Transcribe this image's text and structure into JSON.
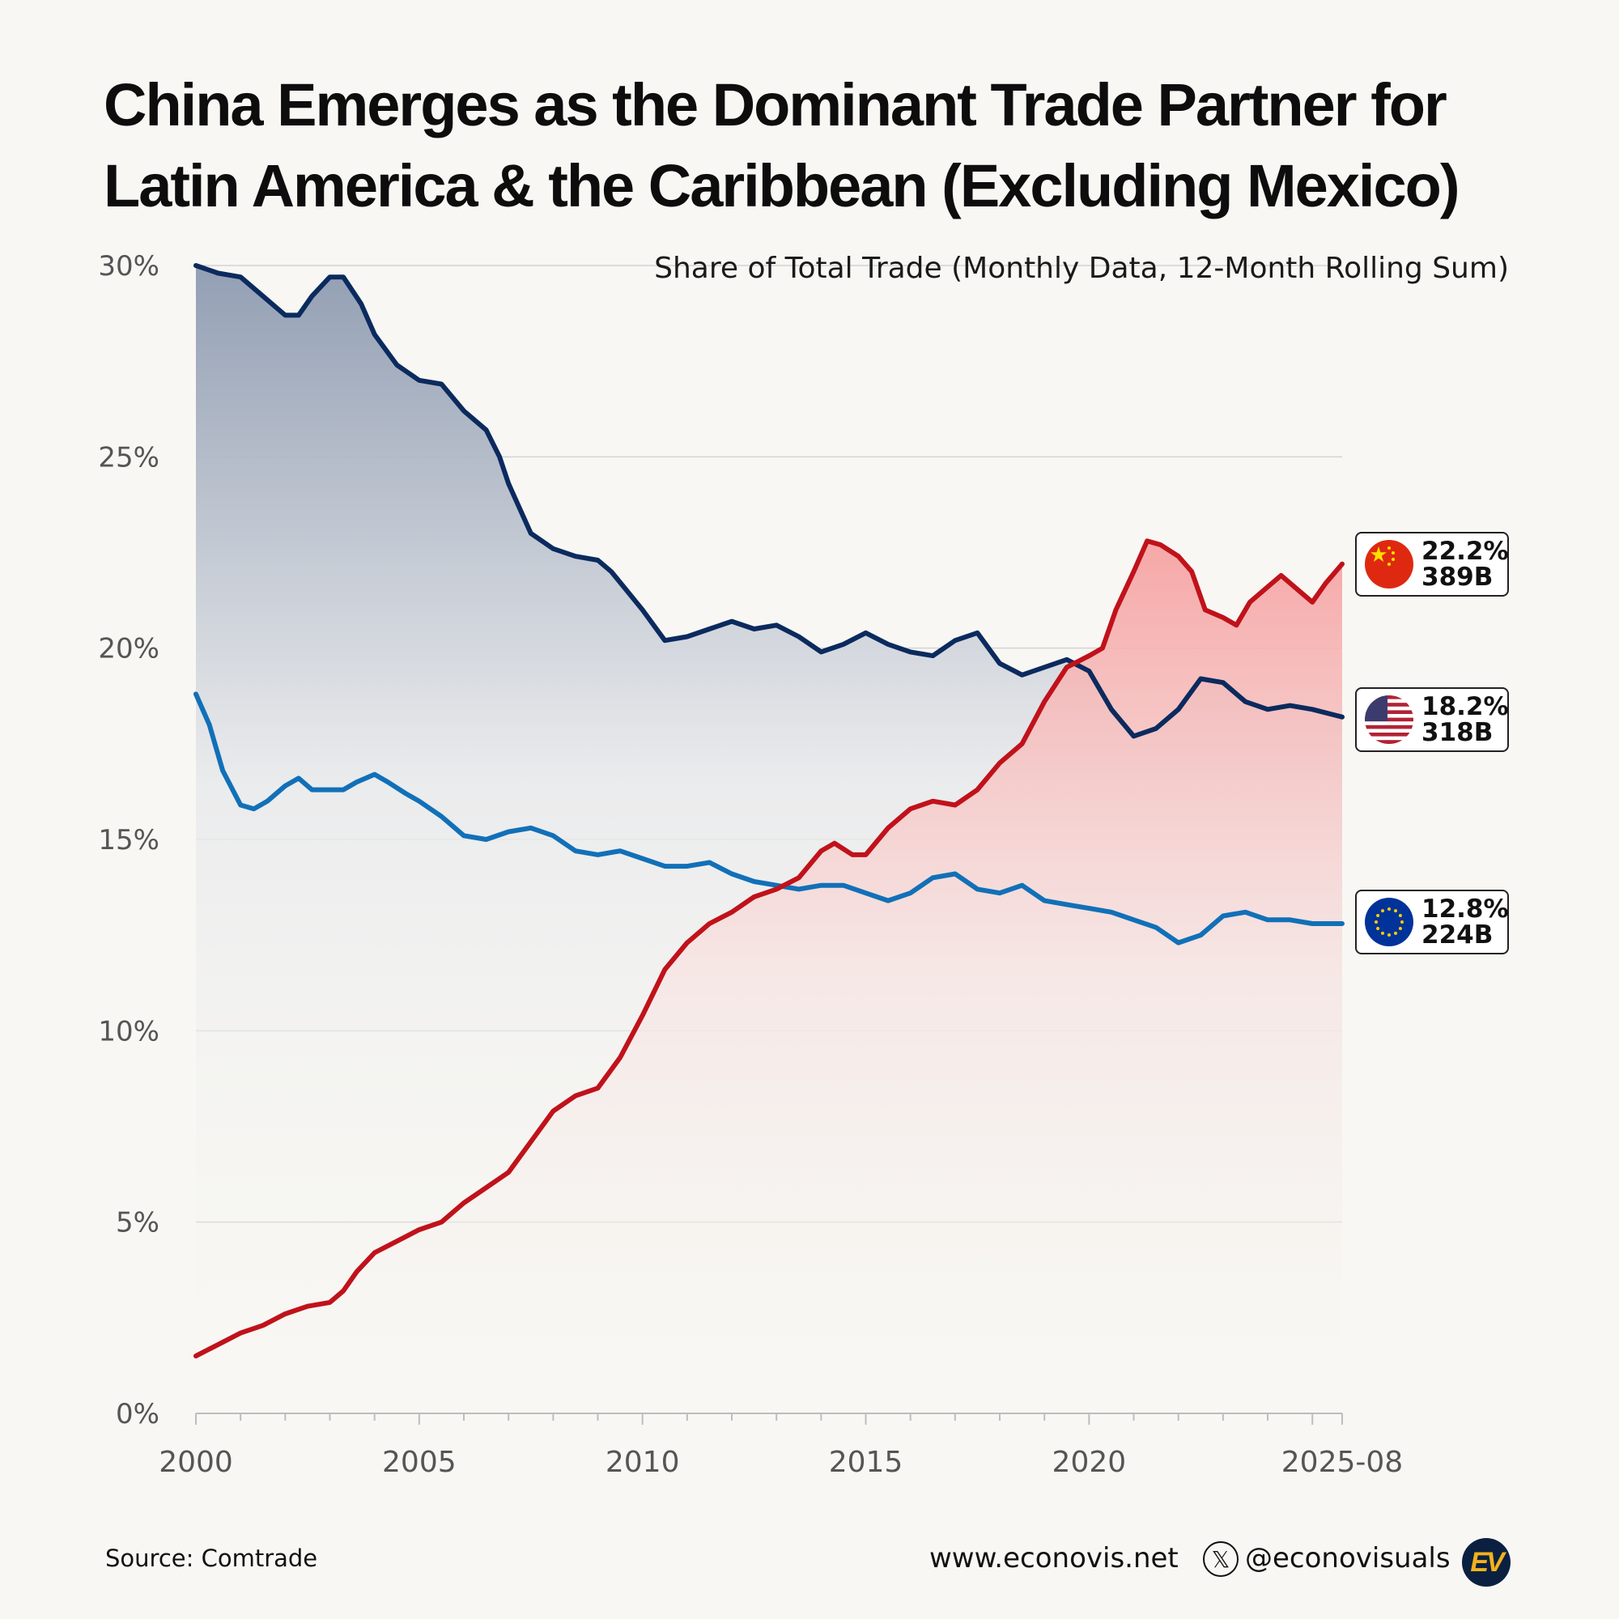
{
  "title": {
    "line1": "China Emerges as the Dominant Trade Partner for",
    "line2": "Latin America & the Caribbean (Excluding Mexico)"
  },
  "subtitle": "Share of Total Trade (Monthly Data, 12-Month Rolling Sum)",
  "footer": {
    "source": "Source: Comtrade",
    "website": "www.econovis.net",
    "handle": "@econovisuals",
    "x_icon": "𝕏",
    "logo_text": "EV"
  },
  "badges": {
    "china": {
      "share": "22.2%",
      "value": "389B"
    },
    "usa": {
      "share": "18.2%",
      "value": "318B"
    },
    "eu": {
      "share": "12.8%",
      "value": "224B"
    }
  },
  "chart_data": {
    "type": "line",
    "title": "China Emerges as the Dominant Trade Partner for Latin America & the Caribbean (Excluding Mexico)",
    "subtitle": "Share of Total Trade (Monthly Data, 12-Month Rolling Sum)",
    "xlabel": "",
    "ylabel": "",
    "xlim": [
      2000,
      2025.667
    ],
    "ylim": [
      0,
      30
    ],
    "y_ticks": [
      0,
      5,
      10,
      15,
      20,
      25,
      30
    ],
    "y_tick_labels": [
      "0%",
      "5%",
      "10%",
      "15%",
      "20%",
      "25%",
      "30%"
    ],
    "x_ticks": [
      2000,
      2005,
      2010,
      2015,
      2020,
      2025.667
    ],
    "x_tick_labels": [
      "2000",
      "2005",
      "2010",
      "2015",
      "2020",
      "2025-08"
    ],
    "grid": true,
    "series": [
      {
        "name": "United States",
        "color": "#0b2a5e",
        "fill": "#8d9ab0",
        "points": [
          [
            2000.0,
            30.0
          ],
          [
            2000.5,
            29.8
          ],
          [
            2001.0,
            29.7
          ],
          [
            2001.5,
            29.2
          ],
          [
            2002.0,
            28.7
          ],
          [
            2002.3,
            28.7
          ],
          [
            2002.6,
            29.2
          ],
          [
            2003.0,
            29.7
          ],
          [
            2003.3,
            29.7
          ],
          [
            2003.7,
            29.0
          ],
          [
            2004.0,
            28.2
          ],
          [
            2004.5,
            27.4
          ],
          [
            2005.0,
            27.0
          ],
          [
            2005.5,
            26.9
          ],
          [
            2006.0,
            26.2
          ],
          [
            2006.5,
            25.7
          ],
          [
            2006.8,
            25.0
          ],
          [
            2007.0,
            24.3
          ],
          [
            2007.5,
            23.0
          ],
          [
            2008.0,
            22.6
          ],
          [
            2008.5,
            22.4
          ],
          [
            2009.0,
            22.3
          ],
          [
            2009.3,
            22.0
          ],
          [
            2010.0,
            21.0
          ],
          [
            2010.5,
            20.2
          ],
          [
            2011.0,
            20.3
          ],
          [
            2011.5,
            20.5
          ],
          [
            2012.0,
            20.7
          ],
          [
            2012.5,
            20.5
          ],
          [
            2013.0,
            20.6
          ],
          [
            2013.5,
            20.3
          ],
          [
            2014.0,
            19.9
          ],
          [
            2014.5,
            20.1
          ],
          [
            2015.0,
            20.4
          ],
          [
            2015.5,
            20.1
          ],
          [
            2016.0,
            19.9
          ],
          [
            2016.5,
            19.8
          ],
          [
            2017.0,
            20.2
          ],
          [
            2017.5,
            20.4
          ],
          [
            2018.0,
            19.6
          ],
          [
            2018.5,
            19.3
          ],
          [
            2019.0,
            19.5
          ],
          [
            2019.5,
            19.7
          ],
          [
            2020.0,
            19.4
          ],
          [
            2020.5,
            18.4
          ],
          [
            2021.0,
            17.7
          ],
          [
            2021.5,
            17.9
          ],
          [
            2022.0,
            18.4
          ],
          [
            2022.5,
            19.2
          ],
          [
            2023.0,
            19.1
          ],
          [
            2023.5,
            18.6
          ],
          [
            2024.0,
            18.4
          ],
          [
            2024.5,
            18.5
          ],
          [
            2025.0,
            18.4
          ],
          [
            2025.667,
            18.2
          ]
        ]
      },
      {
        "name": "European Union",
        "color": "#1170b8",
        "points": [
          [
            2000.0,
            18.8
          ],
          [
            2000.3,
            18.0
          ],
          [
            2000.6,
            16.8
          ],
          [
            2001.0,
            15.9
          ],
          [
            2001.3,
            15.8
          ],
          [
            2001.6,
            16.0
          ],
          [
            2002.0,
            16.4
          ],
          [
            2002.3,
            16.6
          ],
          [
            2002.6,
            16.3
          ],
          [
            2003.0,
            16.3
          ],
          [
            2003.3,
            16.3
          ],
          [
            2003.6,
            16.5
          ],
          [
            2004.0,
            16.7
          ],
          [
            2004.3,
            16.5
          ],
          [
            2004.7,
            16.2
          ],
          [
            2005.0,
            16.0
          ],
          [
            2005.5,
            15.6
          ],
          [
            2006.0,
            15.1
          ],
          [
            2006.5,
            15.0
          ],
          [
            2007.0,
            15.2
          ],
          [
            2007.5,
            15.3
          ],
          [
            2008.0,
            15.1
          ],
          [
            2008.5,
            14.7
          ],
          [
            2009.0,
            14.6
          ],
          [
            2009.5,
            14.7
          ],
          [
            2010.0,
            14.5
          ],
          [
            2010.5,
            14.3
          ],
          [
            2011.0,
            14.3
          ],
          [
            2011.5,
            14.4
          ],
          [
            2012.0,
            14.1
          ],
          [
            2012.5,
            13.9
          ],
          [
            2013.0,
            13.8
          ],
          [
            2013.5,
            13.7
          ],
          [
            2014.0,
            13.8
          ],
          [
            2014.5,
            13.8
          ],
          [
            2015.0,
            13.6
          ],
          [
            2015.5,
            13.4
          ],
          [
            2016.0,
            13.6
          ],
          [
            2016.5,
            14.0
          ],
          [
            2017.0,
            14.1
          ],
          [
            2017.5,
            13.7
          ],
          [
            2018.0,
            13.6
          ],
          [
            2018.5,
            13.8
          ],
          [
            2019.0,
            13.4
          ],
          [
            2019.5,
            13.3
          ],
          [
            2020.0,
            13.2
          ],
          [
            2020.5,
            13.1
          ],
          [
            2021.0,
            12.9
          ],
          [
            2021.5,
            12.7
          ],
          [
            2022.0,
            12.3
          ],
          [
            2022.5,
            12.5
          ],
          [
            2023.0,
            13.0
          ],
          [
            2023.5,
            13.1
          ],
          [
            2024.0,
            12.9
          ],
          [
            2024.5,
            12.9
          ],
          [
            2025.0,
            12.8
          ],
          [
            2025.667,
            12.8
          ]
        ]
      },
      {
        "name": "China",
        "color": "#c0121b",
        "fill": "#f6a3a3",
        "points": [
          [
            2000.0,
            1.5
          ],
          [
            2000.5,
            1.8
          ],
          [
            2001.0,
            2.1
          ],
          [
            2001.5,
            2.3
          ],
          [
            2002.0,
            2.6
          ],
          [
            2002.5,
            2.8
          ],
          [
            2003.0,
            2.9
          ],
          [
            2003.3,
            3.2
          ],
          [
            2003.6,
            3.7
          ],
          [
            2004.0,
            4.2
          ],
          [
            2004.5,
            4.5
          ],
          [
            2005.0,
            4.8
          ],
          [
            2005.5,
            5.0
          ],
          [
            2006.0,
            5.5
          ],
          [
            2006.5,
            5.9
          ],
          [
            2007.0,
            6.3
          ],
          [
            2007.5,
            7.1
          ],
          [
            2008.0,
            7.9
          ],
          [
            2008.5,
            8.3
          ],
          [
            2009.0,
            8.5
          ],
          [
            2009.5,
            9.3
          ],
          [
            2010.0,
            10.4
          ],
          [
            2010.5,
            11.6
          ],
          [
            2011.0,
            12.3
          ],
          [
            2011.5,
            12.8
          ],
          [
            2012.0,
            13.1
          ],
          [
            2012.5,
            13.5
          ],
          [
            2013.0,
            13.7
          ],
          [
            2013.5,
            14.0
          ],
          [
            2014.0,
            14.7
          ],
          [
            2014.3,
            14.9
          ],
          [
            2014.7,
            14.6
          ],
          [
            2015.0,
            14.6
          ],
          [
            2015.5,
            15.3
          ],
          [
            2016.0,
            15.8
          ],
          [
            2016.5,
            16.0
          ],
          [
            2017.0,
            15.9
          ],
          [
            2017.5,
            16.3
          ],
          [
            2018.0,
            17.0
          ],
          [
            2018.5,
            17.5
          ],
          [
            2019.0,
            18.6
          ],
          [
            2019.5,
            19.5
          ],
          [
            2020.0,
            19.8
          ],
          [
            2020.3,
            20.0
          ],
          [
            2020.6,
            21.0
          ],
          [
            2021.0,
            22.0
          ],
          [
            2021.3,
            22.8
          ],
          [
            2021.6,
            22.7
          ],
          [
            2022.0,
            22.4
          ],
          [
            2022.3,
            22.0
          ],
          [
            2022.6,
            21.0
          ],
          [
            2023.0,
            20.8
          ],
          [
            2023.3,
            20.6
          ],
          [
            2023.6,
            21.2
          ],
          [
            2024.0,
            21.6
          ],
          [
            2024.3,
            21.9
          ],
          [
            2024.7,
            21.5
          ],
          [
            2025.0,
            21.2
          ],
          [
            2025.3,
            21.7
          ],
          [
            2025.667,
            22.2
          ]
        ]
      }
    ],
    "end_labels": [
      {
        "series": "China",
        "share": "22.2%",
        "value": "389B"
      },
      {
        "series": "United States",
        "share": "18.2%",
        "value": "318B"
      },
      {
        "series": "European Union",
        "share": "12.8%",
        "value": "224B"
      }
    ]
  }
}
